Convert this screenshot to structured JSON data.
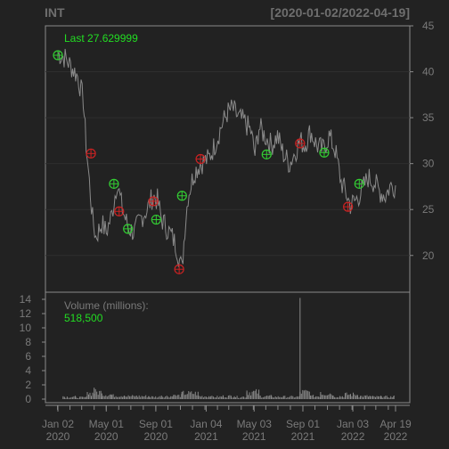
{
  "header": {
    "symbol": "INT",
    "date_range": "[2020-01-02/2022-04-19]"
  },
  "price_panel": {
    "last_label": "Last 27.629999"
  },
  "volume_panel": {
    "label": "Volume (millions):",
    "value": "518,500"
  },
  "colors": {
    "background": "#222222",
    "frame": "#8a8a8a",
    "line": "#8a8a8a",
    "buy": "#33cc33",
    "sell": "#cc2222",
    "highlight": "#22dd22",
    "axis_text": "#7a7a7a"
  },
  "chart_data": [
    {
      "type": "line",
      "title": "INT",
      "subtitle": "[2020-01-02/2022-04-19]",
      "ylim": [
        16,
        45
      ],
      "yticks": [
        20,
        25,
        30,
        35,
        40,
        45
      ],
      "y_axis_side": "right",
      "grid": true,
      "series": [
        {
          "name": "close",
          "points": [
            [
              "2020-01-02",
              42
            ],
            [
              "2020-01-20",
              41.5
            ],
            [
              "2020-02-05",
              40.5
            ],
            [
              "2020-02-20",
              39.5
            ],
            [
              "2020-03-05",
              37
            ],
            [
              "2020-03-12",
              32
            ],
            [
              "2020-03-20",
              28
            ],
            [
              "2020-03-28",
              24
            ],
            [
              "2020-04-05",
              22
            ],
            [
              "2020-04-20",
              23.5
            ],
            [
              "2020-05-01",
              22.5
            ],
            [
              "2020-05-15",
              24.5
            ],
            [
              "2020-05-28",
              28
            ],
            [
              "2020-06-10",
              25
            ],
            [
              "2020-06-25",
              23
            ],
            [
              "2020-07-10",
              22.5
            ],
            [
              "2020-07-25",
              24
            ],
            [
              "2020-08-10",
              25
            ],
            [
              "2020-08-25",
              26.5
            ],
            [
              "2020-09-05",
              26
            ],
            [
              "2020-09-15",
              24
            ],
            [
              "2020-09-28",
              23
            ],
            [
              "2020-10-12",
              22
            ],
            [
              "2020-10-22",
              21
            ],
            [
              "2020-10-30",
              19.5
            ],
            [
              "2020-11-05",
              18.5
            ],
            [
              "2020-11-12",
              23
            ],
            [
              "2020-11-20",
              26.5
            ],
            [
              "2020-12-05",
              29
            ],
            [
              "2020-12-20",
              30
            ],
            [
              "2021-01-10",
              30.5
            ],
            [
              "2021-01-25",
              32
            ],
            [
              "2021-02-10",
              34
            ],
            [
              "2021-02-25",
              35.5
            ],
            [
              "2021-03-10",
              36
            ],
            [
              "2021-03-25",
              35
            ],
            [
              "2021-04-10",
              34.5
            ],
            [
              "2021-04-25",
              33.5
            ],
            [
              "2021-05-05",
              31
            ],
            [
              "2021-05-15",
              34
            ],
            [
              "2021-05-30",
              33
            ],
            [
              "2021-06-15",
              32
            ],
            [
              "2021-06-30",
              33
            ],
            [
              "2021-07-15",
              31
            ],
            [
              "2021-07-30",
              30
            ],
            [
              "2021-08-15",
              31.5
            ],
            [
              "2021-08-25",
              32.5
            ],
            [
              "2021-09-05",
              32
            ],
            [
              "2021-09-20",
              33.5
            ],
            [
              "2021-10-05",
              32
            ],
            [
              "2021-10-20",
              31.5
            ],
            [
              "2021-11-05",
              33
            ],
            [
              "2021-11-20",
              31.5
            ],
            [
              "2021-12-05",
              28
            ],
            [
              "2021-12-15",
              27
            ],
            [
              "2021-12-28",
              25.5
            ],
            [
              "2022-01-10",
              26
            ],
            [
              "2022-01-25",
              27
            ],
            [
              "2022-02-10",
              28.5
            ],
            [
              "2022-02-25",
              28
            ],
            [
              "2022-03-10",
              27
            ],
            [
              "2022-03-25",
              26.5
            ],
            [
              "2022-04-05",
              27.5
            ],
            [
              "2022-04-19",
              27.63
            ]
          ]
        }
      ],
      "signals": [
        {
          "date": "2020-01-02",
          "price": 41.8,
          "side": "buy"
        },
        {
          "date": "2020-03-24",
          "price": 31.1,
          "side": "sell"
        },
        {
          "date": "2020-05-20",
          "price": 27.8,
          "side": "buy"
        },
        {
          "date": "2020-06-02",
          "price": 24.8,
          "side": "sell"
        },
        {
          "date": "2020-06-24",
          "price": 22.9,
          "side": "buy"
        },
        {
          "date": "2020-08-26",
          "price": 25.9,
          "side": "sell"
        },
        {
          "date": "2020-09-02",
          "price": 23.9,
          "side": "buy"
        },
        {
          "date": "2020-10-29",
          "price": 18.5,
          "side": "sell"
        },
        {
          "date": "2020-11-05",
          "price": 26.5,
          "side": "buy"
        },
        {
          "date": "2020-12-21",
          "price": 30.5,
          "side": "sell"
        },
        {
          "date": "2021-06-03",
          "price": 31.0,
          "side": "buy"
        },
        {
          "date": "2021-08-25",
          "price": 32.2,
          "side": "sell"
        },
        {
          "date": "2021-10-24",
          "price": 31.2,
          "side": "buy"
        },
        {
          "date": "2021-12-22",
          "price": 25.3,
          "side": "sell"
        },
        {
          "date": "2022-01-19",
          "price": 27.8,
          "side": "buy"
        }
      ]
    },
    {
      "type": "bar",
      "ylabel": "Volume (millions):",
      "ylim": [
        0,
        14.5
      ],
      "yticks": [
        0,
        2,
        4,
        6,
        8,
        10,
        12,
        14
      ],
      "y_axis_side": "left",
      "series": [
        {
          "name": "volume",
          "points": [
            [
              "2020-01-15",
              0.4
            ],
            [
              "2020-02-15",
              0.3
            ],
            [
              "2020-03-15",
              1.0
            ],
            [
              "2020-04-01",
              1.6
            ],
            [
              "2020-04-20",
              0.8
            ],
            [
              "2020-05-15",
              0.6
            ],
            [
              "2020-06-15",
              0.5
            ],
            [
              "2020-07-15",
              0.5
            ],
            [
              "2020-08-15",
              0.4
            ],
            [
              "2020-09-15",
              0.5
            ],
            [
              "2020-10-15",
              0.6
            ],
            [
              "2020-11-05",
              1.0
            ],
            [
              "2020-12-15",
              0.5
            ],
            [
              "2021-01-15",
              0.4
            ],
            [
              "2021-02-15",
              0.5
            ],
            [
              "2021-03-15",
              0.4
            ],
            [
              "2021-04-15",
              1.2
            ],
            [
              "2021-05-15",
              0.5
            ],
            [
              "2021-06-15",
              0.4
            ],
            [
              "2021-07-15",
              0.4
            ],
            [
              "2021-08-25",
              14.2
            ],
            [
              "2021-09-20",
              0.5
            ],
            [
              "2021-10-15",
              1.0
            ],
            [
              "2021-11-15",
              0.5
            ],
            [
              "2021-12-15",
              0.8
            ],
            [
              "2022-01-15",
              0.5
            ],
            [
              "2022-02-15",
              0.4
            ],
            [
              "2022-03-15",
              0.4
            ],
            [
              "2022-04-15",
              0.5
            ]
          ]
        }
      ]
    }
  ],
  "x_axis": {
    "start": "2020-01-02",
    "end": "2022-04-19",
    "ticks": [
      {
        "date": "2020-01-02",
        "label1": "Jan 02",
        "label2": "2020"
      },
      {
        "date": "2020-05-01",
        "label1": "May 01",
        "label2": "2020"
      },
      {
        "date": "2020-09-01",
        "label1": "Sep 01",
        "label2": "2020"
      },
      {
        "date": "2021-01-04",
        "label1": "Jan 04",
        "label2": "2021"
      },
      {
        "date": "2021-05-03",
        "label1": "May 03",
        "label2": "2021"
      },
      {
        "date": "2021-09-01",
        "label1": "Sep 01",
        "label2": "2021"
      },
      {
        "date": "2022-01-03",
        "label1": "Jan 03",
        "label2": "2022"
      },
      {
        "date": "2022-04-19",
        "label1": "Apr 19",
        "label2": "2022"
      }
    ]
  }
}
